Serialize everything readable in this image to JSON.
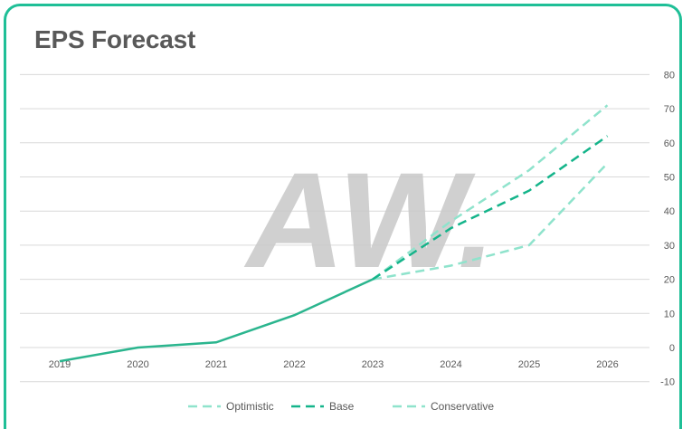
{
  "header": {
    "title": "EPS Forecast"
  },
  "colors": {
    "actual": "#2bb58e",
    "optimistic": "#8fe3cc",
    "base": "#14b48a",
    "conservative": "#8fe3cc",
    "grid": "#d9d9d9",
    "watermark": "#c8c8c8",
    "border": "#1fbf97"
  },
  "watermark": {
    "text": "AW."
  },
  "chart_data": {
    "type": "line",
    "title": "EPS Forecast",
    "x": [
      "2019",
      "2020",
      "2021",
      "2022",
      "2023",
      "2024",
      "2025",
      "2026"
    ],
    "ylim": [
      -10,
      80
    ],
    "yticks": [
      -10,
      0,
      10,
      20,
      30,
      40,
      50,
      60,
      70,
      80
    ],
    "y_axis_side": "right",
    "grid": true,
    "legend_position": "bottom",
    "actual": {
      "values": [
        -4,
        0,
        1.5,
        9.5,
        20,
        null,
        null,
        null
      ]
    },
    "series": [
      {
        "name": "Optimistic",
        "style": "dashed",
        "values": [
          null,
          null,
          null,
          null,
          20,
          37,
          52,
          71
        ]
      },
      {
        "name": "Base",
        "style": "dashed",
        "values": [
          null,
          null,
          null,
          null,
          20,
          35,
          46,
          62
        ]
      },
      {
        "name": "Conservative",
        "style": "dashed",
        "values": [
          null,
          null,
          null,
          null,
          20,
          24,
          30,
          54
        ]
      }
    ]
  }
}
